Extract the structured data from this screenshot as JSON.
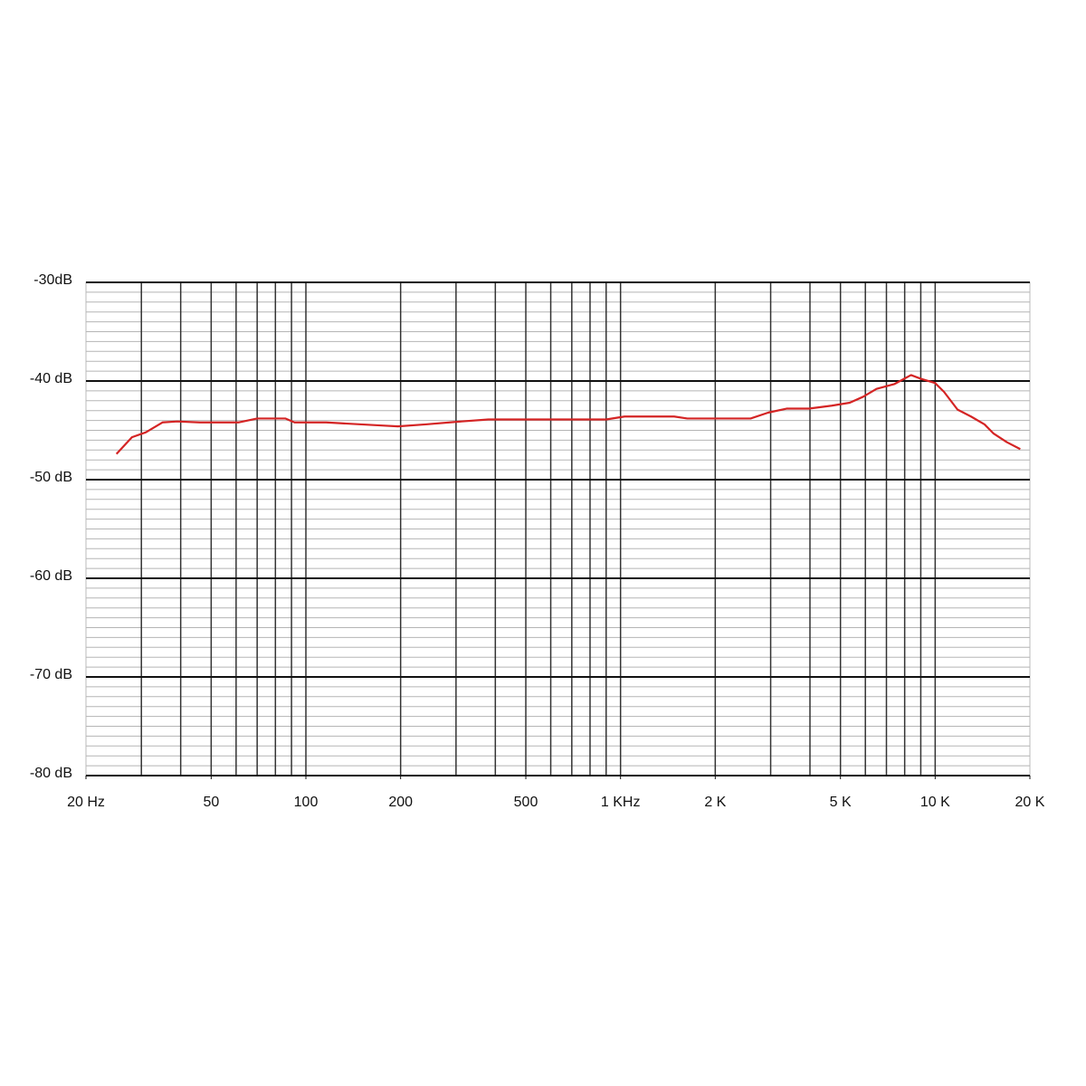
{
  "chart_data": {
    "type": "line",
    "x": [
      25,
      28,
      31,
      35,
      39,
      46,
      61,
      70,
      86,
      92,
      116,
      132,
      172,
      196,
      240,
      312,
      380,
      568,
      900,
      1030,
      1480,
      1630,
      2590,
      2950,
      3370,
      3970,
      4690,
      5350,
      5900,
      6510,
      7430,
      8380,
      9060,
      9990,
      10670,
      11780,
      13000,
      14350,
      15300,
      16890,
      18640
    ],
    "series": [
      {
        "color": "#d42424",
        "values": [
          -47.4,
          -45.7,
          -45.2,
          -44.2,
          -44.1,
          -44.2,
          -44.2,
          -43.8,
          -43.8,
          -44.2,
          -44.2,
          -44.3,
          -44.5,
          -44.6,
          -44.4,
          -44.1,
          -43.9,
          -43.9,
          -43.9,
          -43.6,
          -43.6,
          -43.8,
          -43.8,
          -43.2,
          -42.8,
          -42.8,
          -42.5,
          -42.2,
          -41.6,
          -40.8,
          -40.3,
          -39.4,
          -39.8,
          -40.2,
          -41.1,
          -42.9,
          -43.6,
          -44.4,
          -45.3,
          -46.2,
          -46.9
        ]
      }
    ],
    "log_x": true,
    "xlim": [
      20,
      20000
    ],
    "xticks": [
      {
        "value": 20,
        "label": "20 Hz"
      },
      50,
      100,
      200,
      500,
      {
        "value": 1000,
        "label": "1 KHz"
      },
      {
        "value": 2000,
        "label": "2 K"
      },
      {
        "value": 5000,
        "label": "5 K"
      },
      {
        "value": 10000,
        "label": "10 K"
      },
      {
        "value": 20000,
        "label": "20 K"
      }
    ],
    "ylim": [
      -80,
      -30
    ],
    "yticks": [
      {
        "value": -80,
        "label": "-80 dB"
      },
      {
        "value": -70,
        "label": "-70 dB"
      },
      {
        "value": -60,
        "label": "-60 dB"
      },
      {
        "value": -50,
        "label": "-50 dB"
      },
      {
        "value": -40,
        "label": "-40 dB"
      },
      {
        "value": -30,
        "label": "-30dB"
      }
    ],
    "grid": true
  }
}
